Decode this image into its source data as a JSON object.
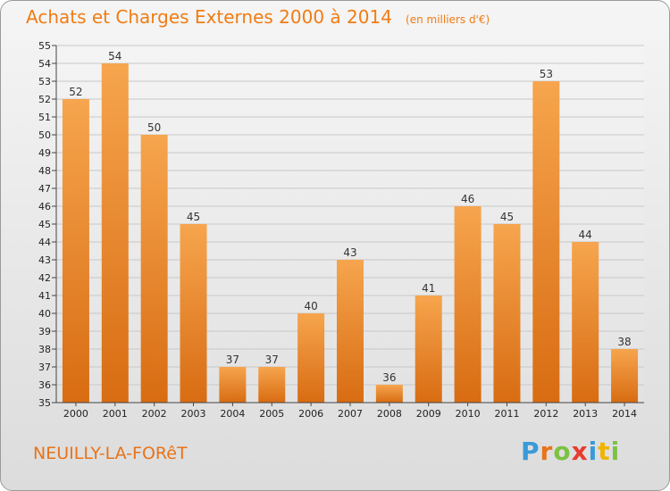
{
  "header": {
    "title": "Achats et Charges Externes 2000 à 2014",
    "unit": "(en milliers d'€)"
  },
  "footer": {
    "commune": "NEUILLY-LA-FORêT",
    "logo_letters": [
      "P",
      "r",
      "o",
      "x",
      "i",
      "t",
      "i"
    ],
    "logo_colors": [
      "#3a9ad9",
      "#e8731a",
      "#7cc242",
      "#e63c2f",
      "#3a9ad9",
      "#f0b400",
      "#7cc242"
    ]
  },
  "colors": {
    "bar_light": "#f6a54e",
    "bar_dark": "#d86c12",
    "title": "#f07c14"
  },
  "chart_data": {
    "type": "bar",
    "categories": [
      "2000",
      "2001",
      "2002",
      "2003",
      "2004",
      "2005",
      "2006",
      "2007",
      "2008",
      "2009",
      "2010",
      "2011",
      "2012",
      "2013",
      "2014"
    ],
    "values": [
      52,
      54,
      50,
      45,
      37,
      37,
      40,
      43,
      36,
      41,
      46,
      45,
      53,
      44,
      38
    ],
    "ylim": [
      35,
      55
    ],
    "yticks": [
      35,
      36,
      37,
      38,
      39,
      40,
      41,
      42,
      43,
      44,
      45,
      46,
      47,
      48,
      49,
      50,
      51,
      52,
      53,
      54,
      55
    ],
    "grid": true,
    "legend": "none"
  }
}
